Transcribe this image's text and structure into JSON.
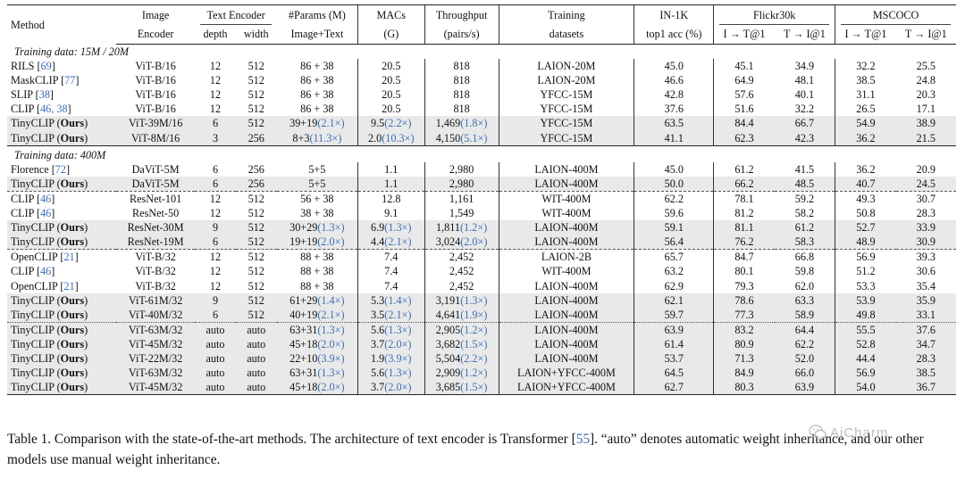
{
  "header": {
    "method": "Method",
    "image_top": "Image",
    "image_bottom": "Encoder",
    "text_encoder": "Text Encoder",
    "depth": "depth",
    "width": "width",
    "params_top": "#Params (M)",
    "params_bottom": "Image+Text",
    "macs_top": "MACs",
    "macs_bottom": "(G)",
    "throughput_top": "Throughput",
    "throughput_bottom": "(pairs/s)",
    "training_top": "Training",
    "training_bottom": "datasets",
    "in1k_top": "IN-1K",
    "in1k_bottom": "top1 acc (%)",
    "flickr": "Flickr30k",
    "mscoco": "MSCOCO",
    "i2t": "I → T@1",
    "t2i": "T → I@1"
  },
  "sections": [
    {
      "title": "Training data: 15M / 20M",
      "rows": [
        {
          "method": "RILS",
          "ref": "69",
          "ours": false,
          "enc": "ViT-B/16",
          "depth": "12",
          "width": "512",
          "params": "86 + 38",
          "params_r": "",
          "macs": "20.5",
          "macs_r": "",
          "thr": "818",
          "thr_r": "",
          "data": "LAION-20M",
          "in1k": "45.0",
          "fi2t": "45.1",
          "ft2i": "34.9",
          "mi2t": "32.2",
          "mt2i": "25.5",
          "gray": false,
          "sep": ""
        },
        {
          "method": "MaskCLIP",
          "ref": "77",
          "ours": false,
          "enc": "ViT-B/16",
          "depth": "12",
          "width": "512",
          "params": "86 + 38",
          "params_r": "",
          "macs": "20.5",
          "macs_r": "",
          "thr": "818",
          "thr_r": "",
          "data": "LAION-20M",
          "in1k": "46.6",
          "fi2t": "64.9",
          "ft2i": "48.1",
          "mi2t": "38.5",
          "mt2i": "24.8",
          "gray": false,
          "sep": ""
        },
        {
          "method": "SLIP",
          "ref": "38",
          "ours": false,
          "enc": "ViT-B/16",
          "depth": "12",
          "width": "512",
          "params": "86 + 38",
          "params_r": "",
          "macs": "20.5",
          "macs_r": "",
          "thr": "818",
          "thr_r": "",
          "data": "YFCC-15M",
          "in1k": "42.8",
          "fi2t": "57.6",
          "ft2i": "40.1",
          "mi2t": "31.1",
          "mt2i": "20.3",
          "gray": false,
          "sep": ""
        },
        {
          "method": "CLIP",
          "ref": "46, 38",
          "ours": false,
          "enc": "ViT-B/16",
          "depth": "12",
          "width": "512",
          "params": "86 + 38",
          "params_r": "",
          "macs": "20.5",
          "macs_r": "",
          "thr": "818",
          "thr_r": "",
          "data": "YFCC-15M",
          "in1k": "37.6",
          "fi2t": "51.6",
          "ft2i": "32.2",
          "mi2t": "26.5",
          "mt2i": "17.1",
          "gray": false,
          "sep": ""
        },
        {
          "method": "TinyCLIP",
          "ref": "",
          "ours": true,
          "enc": "ViT-39M/16",
          "depth": "6",
          "width": "512",
          "params": "39+19",
          "params_r": "(2.1×)",
          "macs": "9.5",
          "macs_r": "(2.2×)",
          "thr": "1,469",
          "thr_r": "(1.8×)",
          "data": "YFCC-15M",
          "in1k": "63.5",
          "fi2t": "84.4",
          "ft2i": "66.7",
          "mi2t": "54.9",
          "mt2i": "38.9",
          "gray": true,
          "sep": ""
        },
        {
          "method": "TinyCLIP",
          "ref": "",
          "ours": true,
          "enc": "ViT-8M/16",
          "depth": "3",
          "width": "256",
          "params": "8+3",
          "params_r": "(11.3×)",
          "macs": "2.0",
          "macs_r": "(10.3×)",
          "thr": "4,150",
          "thr_r": "(5.1×)",
          "data": "YFCC-15M",
          "in1k": "41.1",
          "fi2t": "62.3",
          "ft2i": "42.3",
          "mi2t": "36.2",
          "mt2i": "21.5",
          "gray": true,
          "sep": ""
        }
      ]
    },
    {
      "title": "Training data: 400M",
      "rows": [
        {
          "method": "Florence",
          "ref": "72",
          "ours": false,
          "enc": "DaViT-5M",
          "depth": "6",
          "width": "256",
          "params": "5+5",
          "params_r": "",
          "macs": "1.1",
          "macs_r": "",
          "thr": "2,980",
          "thr_r": "",
          "data": "LAION-400M",
          "in1k": "45.0",
          "fi2t": "61.2",
          "ft2i": "41.5",
          "mi2t": "36.2",
          "mt2i": "20.9",
          "gray": false,
          "sep": ""
        },
        {
          "method": "TinyCLIP",
          "ref": "",
          "ours": true,
          "enc": "DaViT-5M",
          "depth": "6",
          "width": "256",
          "params": "5+5",
          "params_r": "",
          "macs": "1.1",
          "macs_r": "",
          "thr": "2,980",
          "thr_r": "",
          "data": "LAION-400M",
          "in1k": "50.0",
          "fi2t": "66.2",
          "ft2i": "48.5",
          "mi2t": "40.7",
          "mt2i": "24.5",
          "gray": true,
          "sep": ""
        },
        {
          "method": "CLIP",
          "ref": "46",
          "ours": false,
          "enc": "ResNet-101",
          "depth": "12",
          "width": "512",
          "params": "56 + 38",
          "params_r": "",
          "macs": "12.8",
          "macs_r": "",
          "thr": "1,161",
          "thr_r": "",
          "data": "WIT-400M",
          "in1k": "62.2",
          "fi2t": "78.1",
          "ft2i": "59.2",
          "mi2t": "49.3",
          "mt2i": "30.7",
          "gray": false,
          "sep": "dash"
        },
        {
          "method": "CLIP",
          "ref": "46",
          "ours": false,
          "enc": "ResNet-50",
          "depth": "12",
          "width": "512",
          "params": "38 + 38",
          "params_r": "",
          "macs": "9.1",
          "macs_r": "",
          "thr": "1,549",
          "thr_r": "",
          "data": "WIT-400M",
          "in1k": "59.6",
          "fi2t": "81.2",
          "ft2i": "58.2",
          "mi2t": "50.8",
          "mt2i": "28.3",
          "gray": false,
          "sep": ""
        },
        {
          "method": "TinyCLIP",
          "ref": "",
          "ours": true,
          "enc": "ResNet-30M",
          "depth": "9",
          "width": "512",
          "params": "30+29",
          "params_r": "(1.3×)",
          "macs": "6.9",
          "macs_r": "(1.3×)",
          "thr": "1,811",
          "thr_r": "(1.2×)",
          "data": "LAION-400M",
          "in1k": "59.1",
          "fi2t": "81.1",
          "ft2i": "61.2",
          "mi2t": "52.7",
          "mt2i": "33.9",
          "gray": true,
          "sep": ""
        },
        {
          "method": "TinyCLIP",
          "ref": "",
          "ours": true,
          "enc": "ResNet-19M",
          "depth": "6",
          "width": "512",
          "params": "19+19",
          "params_r": "(2.0×)",
          "macs": "4.4",
          "macs_r": "(2.1×)",
          "thr": "3,024",
          "thr_r": "(2.0×)",
          "data": "LAION-400M",
          "in1k": "56.4",
          "fi2t": "76.2",
          "ft2i": "58.3",
          "mi2t": "48.9",
          "mt2i": "30.9",
          "gray": true,
          "sep": ""
        },
        {
          "method": "OpenCLIP",
          "ref": "21",
          "ours": false,
          "enc": "ViT-B/32",
          "depth": "12",
          "width": "512",
          "params": "88 + 38",
          "params_r": "",
          "macs": "7.4",
          "macs_r": "",
          "thr": "2,452",
          "thr_r": "",
          "data": "LAION-2B",
          "in1k": "65.7",
          "fi2t": "84.7",
          "ft2i": "66.8",
          "mi2t": "56.9",
          "mt2i": "39.3",
          "gray": false,
          "sep": "dash"
        },
        {
          "method": "CLIP",
          "ref": "46",
          "ours": false,
          "enc": "ViT-B/32",
          "depth": "12",
          "width": "512",
          "params": "88 + 38",
          "params_r": "",
          "macs": "7.4",
          "macs_r": "",
          "thr": "2,452",
          "thr_r": "",
          "data": "WIT-400M",
          "in1k": "63.2",
          "fi2t": "80.1",
          "ft2i": "59.8",
          "mi2t": "51.2",
          "mt2i": "30.6",
          "gray": false,
          "sep": ""
        },
        {
          "method": "OpenCLIP",
          "ref": "21",
          "ours": false,
          "enc": "ViT-B/32",
          "depth": "12",
          "width": "512",
          "params": "88 + 38",
          "params_r": "",
          "macs": "7.4",
          "macs_r": "",
          "thr": "2,452",
          "thr_r": "",
          "data": "LAION-400M",
          "in1k": "62.9",
          "fi2t": "79.3",
          "ft2i": "62.0",
          "mi2t": "53.3",
          "mt2i": "35.4",
          "gray": false,
          "sep": ""
        },
        {
          "method": "TinyCLIP",
          "ref": "",
          "ours": true,
          "enc": "ViT-61M/32",
          "depth": "9",
          "width": "512",
          "params": "61+29",
          "params_r": "(1.4×)",
          "macs": "5.3",
          "macs_r": "(1.4×)",
          "thr": "3,191",
          "thr_r": "(1.3×)",
          "data": "LAION-400M",
          "in1k": "62.1",
          "fi2t": "78.6",
          "ft2i": "63.3",
          "mi2t": "53.9",
          "mt2i": "35.9",
          "gray": true,
          "sep": ""
        },
        {
          "method": "TinyCLIP",
          "ref": "",
          "ours": true,
          "enc": "ViT-40M/32",
          "depth": "6",
          "width": "512",
          "params": "40+19",
          "params_r": "(2.1×)",
          "macs": "3.5",
          "macs_r": "(2.1×)",
          "thr": "4,641",
          "thr_r": "(1.9×)",
          "data": "LAION-400M",
          "in1k": "59.7",
          "fi2t": "77.3",
          "ft2i": "58.9",
          "mi2t": "49.8",
          "mt2i": "33.1",
          "gray": true,
          "sep": ""
        },
        {
          "method": "TinyCLIP",
          "ref": "",
          "ours": true,
          "enc": "ViT-63M/32",
          "depth": "auto",
          "width": "auto",
          "params": "63+31",
          "params_r": "(1.3×)",
          "macs": "5.6",
          "macs_r": "(1.3×)",
          "thr": "2,905",
          "thr_r": "(1.2×)",
          "data": "LAION-400M",
          "in1k": "63.9",
          "fi2t": "83.2",
          "ft2i": "64.4",
          "mi2t": "55.5",
          "mt2i": "37.6",
          "gray": true,
          "sep": "dot"
        },
        {
          "method": "TinyCLIP",
          "ref": "",
          "ours": true,
          "enc": "ViT-45M/32",
          "depth": "auto",
          "width": "auto",
          "params": "45+18",
          "params_r": "(2.0×)",
          "macs": "3.7",
          "macs_r": "(2.0×)",
          "thr": "3,682",
          "thr_r": "(1.5×)",
          "data": "LAION-400M",
          "in1k": "61.4",
          "fi2t": "80.9",
          "ft2i": "62.2",
          "mi2t": "52.8",
          "mt2i": "34.7",
          "gray": true,
          "sep": ""
        },
        {
          "method": "TinyCLIP",
          "ref": "",
          "ours": true,
          "enc": "ViT-22M/32",
          "depth": "auto",
          "width": "auto",
          "params": "22+10",
          "params_r": "(3.9×)",
          "macs": "1.9",
          "macs_r": "(3.9×)",
          "thr": "5,504",
          "thr_r": "(2.2×)",
          "data": "LAION-400M",
          "in1k": "53.7",
          "fi2t": "71.3",
          "ft2i": "52.0",
          "mi2t": "44.4",
          "mt2i": "28.3",
          "gray": true,
          "sep": ""
        },
        {
          "method": "TinyCLIP",
          "ref": "",
          "ours": true,
          "enc": "ViT-63M/32",
          "depth": "auto",
          "width": "auto",
          "params": "63+31",
          "params_r": "(1.3×)",
          "macs": "5.6",
          "macs_r": "(1.3×)",
          "thr": "2,909",
          "thr_r": "(1.2×)",
          "data": "LAION+YFCC-400M",
          "in1k": "64.5",
          "fi2t": "84.9",
          "ft2i": "66.0",
          "mi2t": "56.9",
          "mt2i": "38.5",
          "gray": true,
          "sep": ""
        },
        {
          "method": "TinyCLIP",
          "ref": "",
          "ours": true,
          "enc": "ViT-45M/32",
          "depth": "auto",
          "width": "auto",
          "params": "45+18",
          "params_r": "(2.0×)",
          "macs": "3.7",
          "macs_r": "(2.0×)",
          "thr": "3,685",
          "thr_r": "(1.5×)",
          "data": "LAION+YFCC-400M",
          "in1k": "62.7",
          "fi2t": "80.3",
          "ft2i": "63.9",
          "mi2t": "54.0",
          "mt2i": "36.7",
          "gray": true,
          "sep": ""
        }
      ]
    }
  ],
  "ours_label": "Ours",
  "caption": {
    "part1": "Table 1. Comparison with the state-of-the-art methods. The architecture of text encoder is Transformer [",
    "ref": "55",
    "part2": "]. “auto” denotes automatic weight inheritance, and our other models use manual weight inheritance."
  },
  "watermark": {
    "text": "AiCharm",
    "icon": "wechat-logo-icon"
  }
}
